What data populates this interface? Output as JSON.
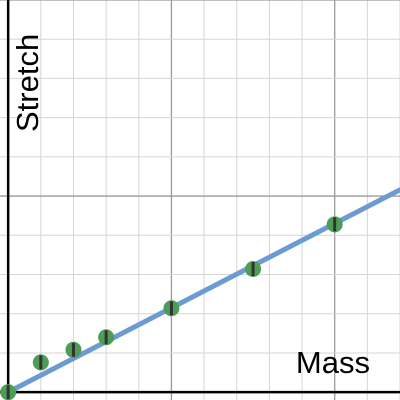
{
  "chart_data": {
    "type": "scatter",
    "title": "",
    "xlabel": "Mass",
    "ylabel": "Stretch",
    "xlim": [
      -0.05,
      2.4
    ],
    "ylim": [
      -0.01,
      0.5
    ],
    "grid": true,
    "x": [
      0.0,
      0.2,
      0.4,
      0.6,
      1.0,
      1.5,
      2.0
    ],
    "y": [
      0.0,
      0.038,
      0.054,
      0.07,
      0.107,
      0.157,
      0.214
    ],
    "fit_line": {
      "slope": 0.1075,
      "intercept": 0.0
    },
    "colors": {
      "fit_line": "#6b9bd1",
      "point_fill": "#4f9c57",
      "error_bar": "#333333",
      "grid_major": "#9a9a9a",
      "grid_minor": "#d6d6d6",
      "axis": "#000000"
    }
  }
}
